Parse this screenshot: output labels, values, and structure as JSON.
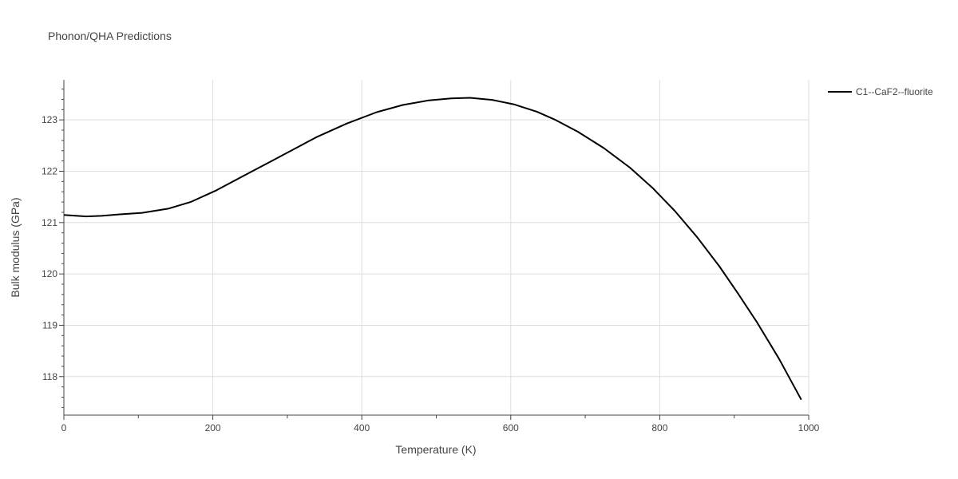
{
  "chart_data": {
    "type": "line",
    "title": "Phonon/QHA Predictions",
    "xlabel": "Temperature (K)",
    "ylabel": "Bulk modulus (GPa)",
    "xlim": [
      0,
      1000
    ],
    "ylim": [
      117.25,
      123.78
    ],
    "xticks": [
      0,
      200,
      400,
      600,
      800,
      1000
    ],
    "yticks": [
      118,
      119,
      120,
      121,
      122,
      123
    ],
    "grid": true,
    "legend_position": "top-right",
    "series": [
      {
        "name": "C1--CaF2--fluorite",
        "color": "#000000",
        "x": [
          0,
          30,
          50,
          75,
          105,
          140,
          170,
          205,
          240,
          275,
          305,
          340,
          380,
          420,
          455,
          490,
          520,
          545,
          575,
          605,
          635,
          660,
          690,
          725,
          760,
          790,
          820,
          850,
          880,
          905,
          930,
          960,
          990
        ],
        "y": [
          121.15,
          121.12,
          121.13,
          121.16,
          121.19,
          121.27,
          121.4,
          121.63,
          121.9,
          122.17,
          122.4,
          122.67,
          122.93,
          123.15,
          123.29,
          123.38,
          123.42,
          123.43,
          123.39,
          123.3,
          123.16,
          123.0,
          122.77,
          122.45,
          122.07,
          121.68,
          121.23,
          120.72,
          120.15,
          119.62,
          119.07,
          118.35,
          117.55
        ]
      }
    ]
  }
}
